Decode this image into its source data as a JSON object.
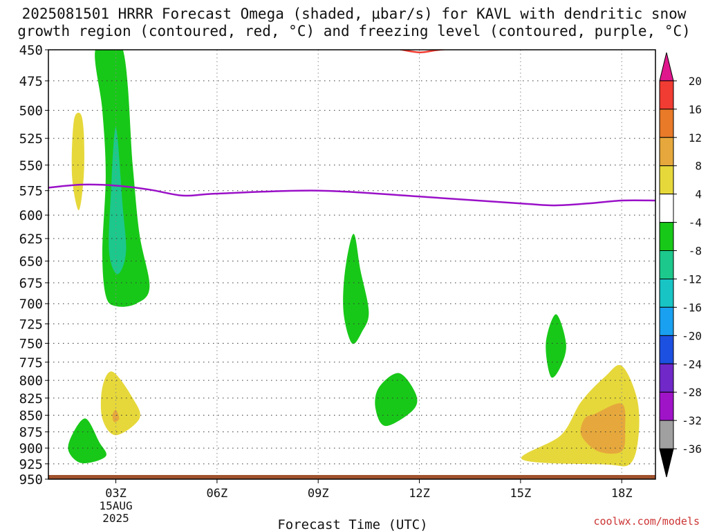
{
  "title": {
    "line1": "2025081501 HRRR Forecast Omega (shaded, µbar/s) for KAVL with dendritic snow",
    "line2": "growth region (contoured, red, °C) and freezing level (contoured, purple, °C)"
  },
  "watermark": "coolwx.com/models",
  "chart_data": {
    "type": "time-height contour",
    "xlabel": "Forecast Time (UTC)",
    "x_ticks": [
      {
        "hour": 3,
        "label": "03Z",
        "date_line1": "15AUG",
        "date_line2": "2025"
      },
      {
        "hour": 6,
        "label": "06Z"
      },
      {
        "hour": 9,
        "label": "09Z"
      },
      {
        "hour": 12,
        "label": "12Z"
      },
      {
        "hour": 15,
        "label": "15Z"
      },
      {
        "hour": 18,
        "label": "18Z"
      }
    ],
    "xlim_hours": [
      1,
      19
    ],
    "ylim_hPa": [
      450,
      950
    ],
    "y_ticks": [
      450,
      475,
      500,
      525,
      550,
      575,
      600,
      625,
      650,
      675,
      700,
      725,
      750,
      775,
      800,
      825,
      850,
      875,
      900,
      925,
      950
    ],
    "y_scale": "log-pressure",
    "grid": true,
    "colorbar": {
      "labels": [
        "20",
        "16",
        "12",
        "8",
        "4",
        "-4",
        "-8",
        "-12",
        "-16",
        "-20",
        "-24",
        "-28",
        "-32",
        "-36"
      ],
      "colors": [
        "#e0168c",
        "#f03c32",
        "#e87a28",
        "#e6a83c",
        "#e6d83a",
        "#ffffff",
        "#18c818",
        "#1cc88c",
        "#18c4c4",
        "#1aa0f0",
        "#1c50e0",
        "#7028c8",
        "#a014c8",
        "#a0a0a0",
        "#000000"
      ]
    },
    "freezing_level": {
      "color": "#9a10c8",
      "points": [
        [
          1,
          572
        ],
        [
          2,
          569
        ],
        [
          3,
          570
        ],
        [
          4,
          574
        ],
        [
          5,
          580
        ],
        [
          6,
          578
        ],
        [
          9,
          575
        ],
        [
          12,
          581
        ],
        [
          15,
          588
        ],
        [
          16,
          590
        ],
        [
          17,
          588
        ],
        [
          18,
          585
        ],
        [
          19,
          585
        ]
      ]
    },
    "dgz_contour": {
      "color": "#f03c32",
      "points": [
        [
          11.3,
          449
        ],
        [
          12,
          452
        ],
        [
          12.6,
          450
        ],
        [
          13.9,
          447
        ]
      ]
    },
    "ground_color": "#a0522d",
    "omega_regions": [
      {
        "name": "green-column",
        "color": "#18c818",
        "points": [
          [
            2.4,
            449
          ],
          [
            3.2,
            449
          ],
          [
            3.5,
            550
          ],
          [
            3.7,
            620
          ],
          [
            4.0,
            680
          ],
          [
            3.6,
            700
          ],
          [
            3.0,
            703
          ],
          [
            2.7,
            690
          ],
          [
            2.6,
            640
          ],
          [
            2.7,
            560
          ],
          [
            2.6,
            500
          ]
        ]
      },
      {
        "name": "teal-core",
        "color": "#1cc88c",
        "points": [
          [
            3.0,
            515
          ],
          [
            3.2,
            590
          ],
          [
            3.3,
            640
          ],
          [
            3.05,
            665
          ],
          [
            2.8,
            640
          ],
          [
            2.85,
            580
          ]
        ]
      },
      {
        "name": "yellow-upper-left",
        "color": "#e6d83a",
        "points": [
          [
            1.95,
            503
          ],
          [
            2.05,
            520
          ],
          [
            2.05,
            560
          ],
          [
            1.9,
            595
          ],
          [
            1.7,
            560
          ],
          [
            1.75,
            510
          ]
        ]
      },
      {
        "name": "green-mid-09z",
        "color": "#18c818",
        "points": [
          [
            10.05,
            620
          ],
          [
            10.25,
            660
          ],
          [
            10.5,
            710
          ],
          [
            10.3,
            735
          ],
          [
            10.0,
            750
          ],
          [
            9.75,
            710
          ],
          [
            9.8,
            660
          ]
        ]
      },
      {
        "name": "green-mid-16z",
        "color": "#18c818",
        "points": [
          [
            16.05,
            713
          ],
          [
            16.35,
            750
          ],
          [
            16.2,
            780
          ],
          [
            15.9,
            795
          ],
          [
            15.75,
            750
          ]
        ]
      },
      {
        "name": "green-lower-11z",
        "color": "#18c818",
        "points": [
          [
            11.4,
            790
          ],
          [
            11.9,
            820
          ],
          [
            11.8,
            843
          ],
          [
            11.0,
            866
          ],
          [
            10.7,
            840
          ],
          [
            10.8,
            810
          ]
        ]
      },
      {
        "name": "yellow-lower-03z",
        "color": "#e6d83a",
        "points": [
          [
            2.9,
            788
          ],
          [
            3.5,
            825
          ],
          [
            3.7,
            855
          ],
          [
            3.0,
            880
          ],
          [
            2.6,
            855
          ],
          [
            2.6,
            810
          ]
        ]
      },
      {
        "name": "orange-spot-03z",
        "color": "#e6a83c",
        "points": [
          [
            3.0,
            842
          ],
          [
            3.1,
            855
          ],
          [
            2.95,
            860
          ],
          [
            2.9,
            850
          ]
        ]
      },
      {
        "name": "green-lower-left",
        "color": "#18c818",
        "points": [
          [
            2.1,
            855
          ],
          [
            2.5,
            890
          ],
          [
            2.7,
            913
          ],
          [
            2.0,
            924
          ],
          [
            1.6,
            905
          ],
          [
            1.7,
            880
          ]
        ]
      },
      {
        "name": "yellow-lower-right",
        "color": "#e6d83a",
        "points": [
          [
            18.0,
            780
          ],
          [
            18.45,
            825
          ],
          [
            18.5,
            880
          ],
          [
            18.25,
            925
          ],
          [
            17.5,
            926
          ],
          [
            15.05,
            918
          ],
          [
            16.2,
            880
          ],
          [
            16.8,
            830
          ],
          [
            17.5,
            795
          ]
        ]
      },
      {
        "name": "orange-lower-right",
        "color": "#e6a83c",
        "points": [
          [
            18.0,
            833
          ],
          [
            18.1,
            870
          ],
          [
            18.0,
            905
          ],
          [
            17.3,
            905
          ],
          [
            16.8,
            880
          ],
          [
            16.9,
            855
          ],
          [
            17.2,
            848
          ]
        ]
      }
    ]
  }
}
